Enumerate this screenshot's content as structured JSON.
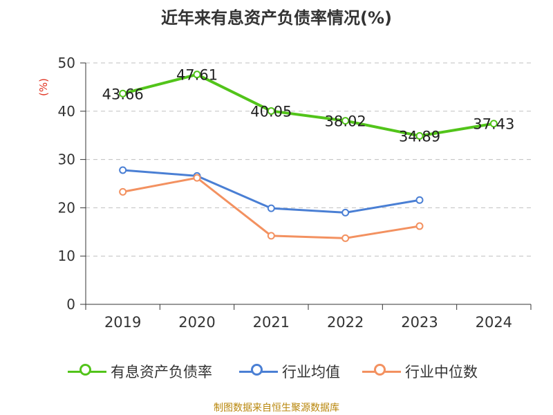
{
  "title": "近年来有息资产负债率情况(%)",
  "source": "制图数据来自恒生聚源数据库",
  "chart_data": {
    "type": "line",
    "title": "近年来有息资产负债率情况(%)",
    "xlabel": "",
    "ylabel": "(%)",
    "categories": [
      "2019",
      "2020",
      "2021",
      "2022",
      "2023",
      "2024"
    ],
    "ylim": [
      0,
      50
    ],
    "yticks": [
      "0",
      "10",
      "20",
      "30",
      "40",
      "50"
    ],
    "grid": true,
    "legend_position": "bottom",
    "series": [
      {
        "name": "有息资产负债率",
        "color": "#52c41a",
        "values": [
          43.66,
          47.61,
          40.05,
          38.02,
          34.89,
          37.43
        ],
        "labels": [
          "43.66",
          "47.61",
          "40.05",
          "38.02",
          "34.89",
          "37.43"
        ]
      },
      {
        "name": "行业均值",
        "color": "#4a7fd4",
        "values": [
          27.8,
          26.6,
          19.9,
          19.0,
          21.6,
          null
        ]
      },
      {
        "name": "行业中位数",
        "color": "#f39160",
        "values": [
          23.3,
          26.2,
          14.2,
          13.7,
          16.2,
          null
        ]
      }
    ]
  }
}
